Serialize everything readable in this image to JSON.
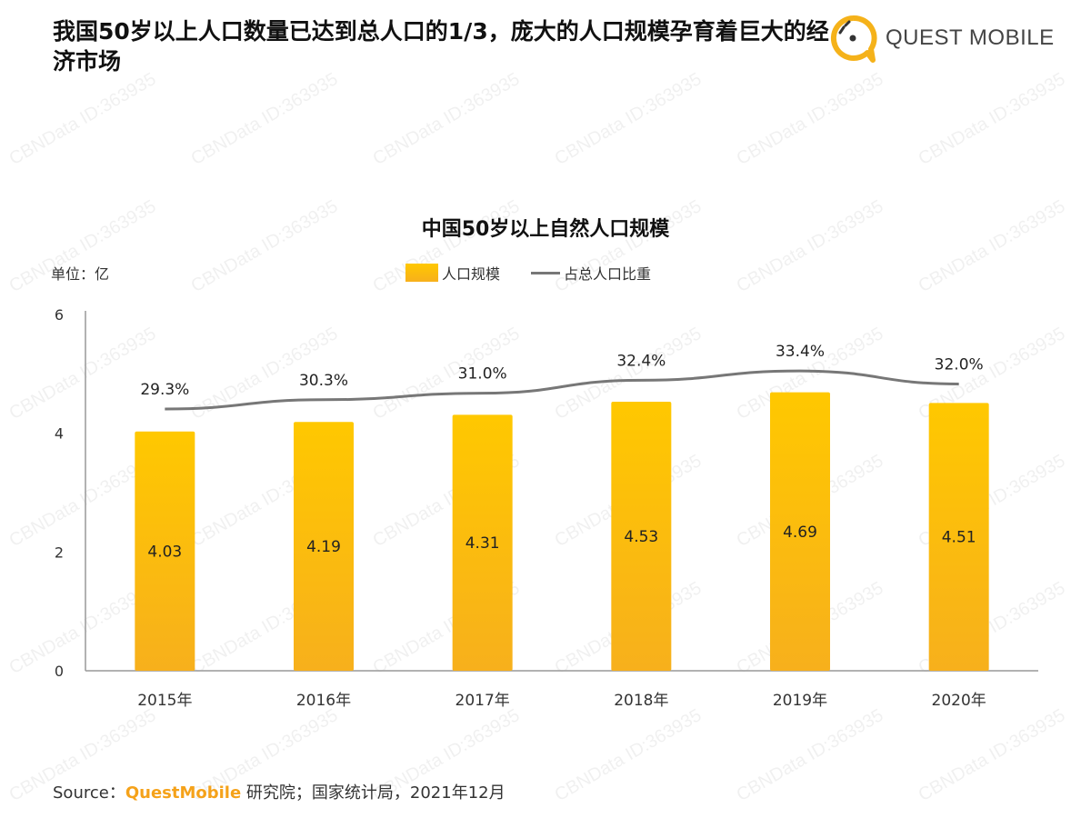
{
  "header": {
    "title": "我国50岁以上人口数量已达到总人口的1/3，庞大的人口规模孕育着巨大的经济市场",
    "logo_text": "QUEST MOBILE"
  },
  "watermark": "CBNData ID:363935",
  "colors": {
    "bar": "#FFC800",
    "bar_bottom": "#F7B01C",
    "line": "#777777",
    "brand": "#F5A21A"
  },
  "chart_data": {
    "type": "bar",
    "title": "中国50岁以上自然人口规模",
    "unit_label": "单位：亿",
    "categories": [
      "2015年",
      "2016年",
      "2017年",
      "2018年",
      "2019年",
      "2020年"
    ],
    "ylim": [
      0,
      6
    ],
    "yticks": [
      0,
      2,
      4,
      6
    ],
    "grid": false,
    "legend_position": "top-center",
    "series": [
      {
        "name": "人口规模",
        "type": "bar",
        "values": [
          4.03,
          4.19,
          4.31,
          4.53,
          4.69,
          4.51
        ],
        "labels": [
          "4.03",
          "4.19",
          "4.31",
          "4.53",
          "4.69",
          "4.51"
        ]
      },
      {
        "name": "占总人口比重",
        "type": "line",
        "values": [
          29.3,
          30.3,
          31.0,
          32.4,
          33.4,
          32.0
        ],
        "labels": [
          "29.3%",
          "30.3%",
          "31.0%",
          "32.4%",
          "33.4%",
          "32.0%"
        ]
      }
    ]
  },
  "footer": {
    "source_prefix": "Source：",
    "source_brand": "QuestMobile",
    "source_rest": " 研究院；国家统计局，2021年12月"
  }
}
